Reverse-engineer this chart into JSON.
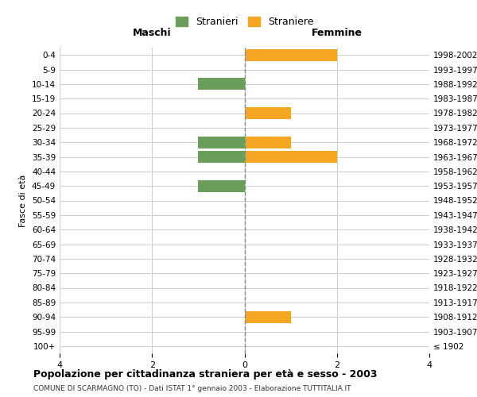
{
  "age_groups": [
    "100+",
    "95-99",
    "90-94",
    "85-89",
    "80-84",
    "75-79",
    "70-74",
    "65-69",
    "60-64",
    "55-59",
    "50-54",
    "45-49",
    "40-44",
    "35-39",
    "30-34",
    "25-29",
    "20-24",
    "15-19",
    "10-14",
    "5-9",
    "0-4"
  ],
  "birth_years": [
    "≤ 1902",
    "1903-1907",
    "1908-1912",
    "1913-1917",
    "1918-1922",
    "1923-1927",
    "1928-1932",
    "1933-1937",
    "1938-1942",
    "1943-1947",
    "1948-1952",
    "1953-1957",
    "1958-1962",
    "1963-1967",
    "1968-1972",
    "1973-1977",
    "1978-1982",
    "1983-1987",
    "1988-1992",
    "1993-1997",
    "1998-2002"
  ],
  "males": [
    0,
    0,
    0,
    0,
    0,
    0,
    0,
    0,
    0,
    0,
    0,
    1,
    0,
    1,
    1,
    0,
    0,
    0,
    1,
    0,
    0
  ],
  "females": [
    0,
    0,
    1,
    0,
    0,
    0,
    0,
    0,
    0,
    0,
    0,
    0,
    0,
    2,
    1,
    0,
    1,
    0,
    0,
    0,
    2
  ],
  "male_color": "#6a9e5a",
  "female_color": "#f5a623",
  "title": "Popolazione per cittadinanza straniera per età e sesso - 2003",
  "subtitle": "COMUNE DI SCARMAGNO (TO) - Dati ISTAT 1° gennaio 2003 - Elaborazione TUTTITALIA.IT",
  "ylabel_left": "Fasce di età",
  "xlabel_left": "Maschi",
  "xlabel_right": "Femmine",
  "legend_male": "Stranieri",
  "legend_female": "Straniere",
  "xlim": 4,
  "bg_color": "#ffffff",
  "grid_color": "#cccccc",
  "bar_height": 0.8
}
